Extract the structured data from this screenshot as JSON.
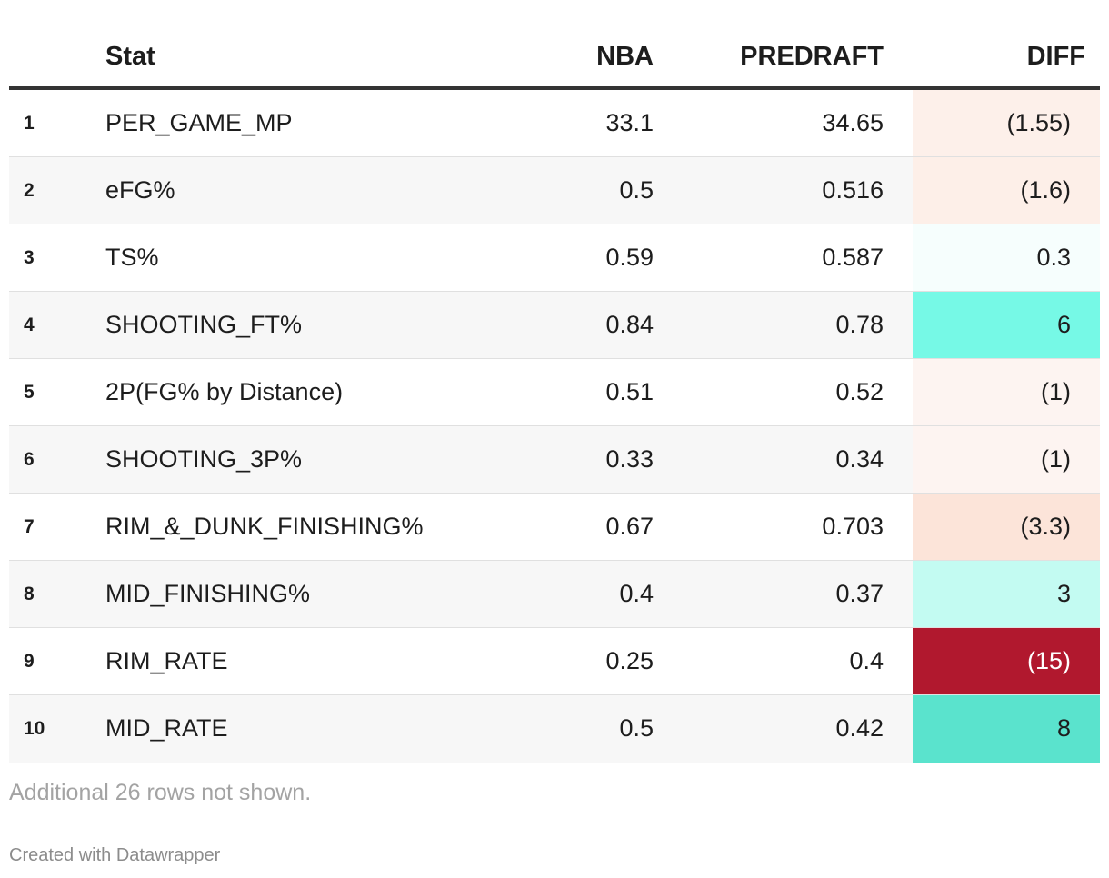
{
  "chart_data": {
    "type": "table",
    "columns": [
      "",
      "Stat",
      "NBA",
      "PREDRAFT",
      "DIFF"
    ],
    "rows": [
      {
        "rank": "1",
        "stat": "PER_GAME_MP",
        "nba": "33.1",
        "predraft": "34.65",
        "diff": "(1.55)",
        "diff_value": -1.55,
        "diff_color": "#fdf0ea"
      },
      {
        "rank": "2",
        "stat": "eFG%",
        "nba": "0.5",
        "predraft": "0.516",
        "diff": "(1.6)",
        "diff_value": -1.6,
        "diff_color": "#fdefe8"
      },
      {
        "rank": "3",
        "stat": "TS%",
        "nba": "0.59",
        "predraft": "0.587",
        "diff": "0.3",
        "diff_value": 0.3,
        "diff_color": "#f6fefd"
      },
      {
        "rank": "4",
        "stat": "SHOOTING_FT%",
        "nba": "0.84",
        "predraft": "0.78",
        "diff": "6",
        "diff_value": 6,
        "diff_color": "#76f9e6"
      },
      {
        "rank": "5",
        "stat": "2P(FG% by Distance)",
        "nba": "0.51",
        "predraft": "0.52",
        "diff": "(1)",
        "diff_value": -1,
        "diff_color": "#fdf4f1"
      },
      {
        "rank": "6",
        "stat": "SHOOTING_3P%",
        "nba": "0.33",
        "predraft": "0.34",
        "diff": "(1)",
        "diff_value": -1,
        "diff_color": "#fdf4f1"
      },
      {
        "rank": "7",
        "stat": "RIM_&_DUNK_FINISHING%",
        "nba": "0.67",
        "predraft": "0.703",
        "diff": "(3.3)",
        "diff_value": -3.3,
        "diff_color": "#fce4d9"
      },
      {
        "rank": "8",
        "stat": "MID_FINISHING%",
        "nba": "0.4",
        "predraft": "0.37",
        "diff": "3",
        "diff_value": 3,
        "diff_color": "#c3fbf2"
      },
      {
        "rank": "9",
        "stat": "RIM_RATE",
        "nba": "0.25",
        "predraft": "0.4",
        "diff": "(15)",
        "diff_value": -15,
        "diff_color": "#b1182e",
        "diff_text_color": "#ffffff"
      },
      {
        "rank": "10",
        "stat": "MID_RATE",
        "nba": "0.5",
        "predraft": "0.42",
        "diff": "8",
        "diff_value": 8,
        "diff_color": "#5ae3cd"
      }
    ],
    "footnote": "Additional 26 rows not shown.",
    "credit": "Created with Datawrapper"
  }
}
